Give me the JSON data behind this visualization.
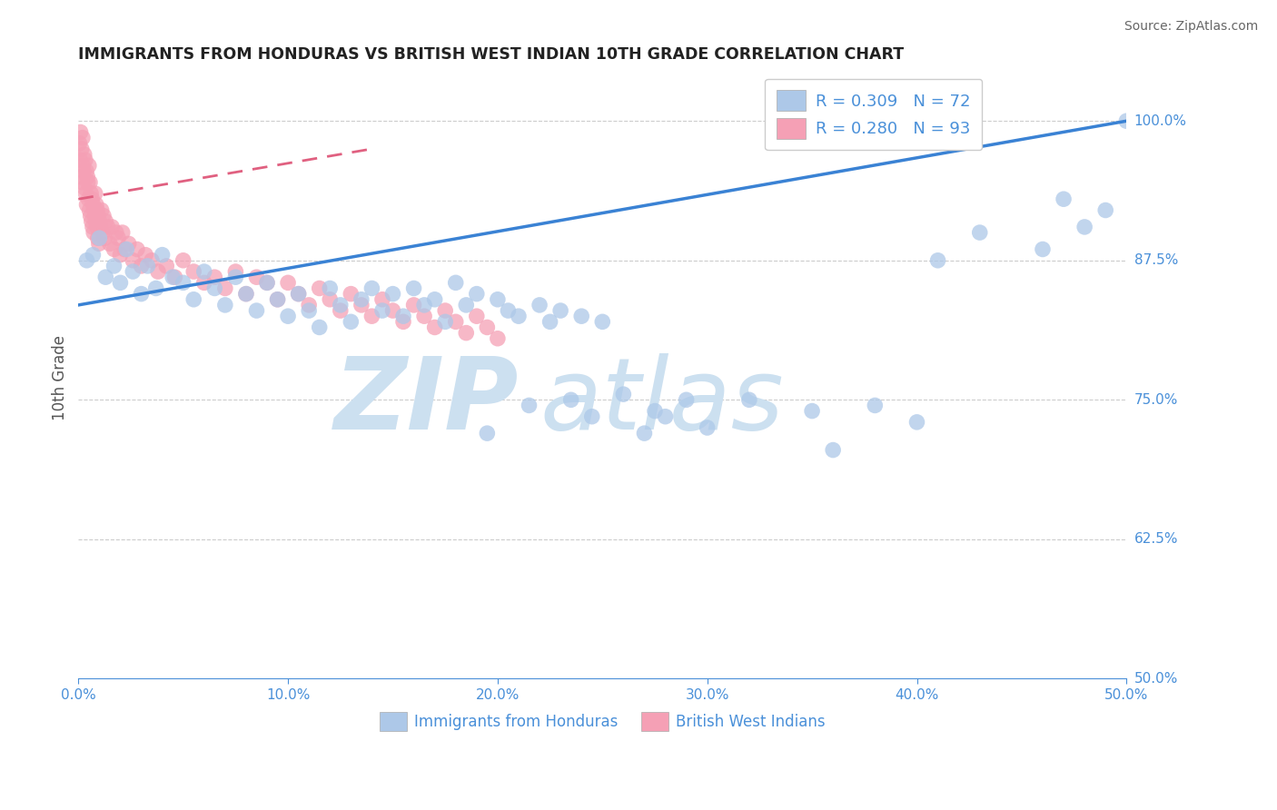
{
  "title": "IMMIGRANTS FROM HONDURAS VS BRITISH WEST INDIAN 10TH GRADE CORRELATION CHART",
  "source": "Source: ZipAtlas.com",
  "ylabel": "10th Grade",
  "xlim": [
    0.0,
    50.0
  ],
  "ylim": [
    50.0,
    104.0
  ],
  "ytick_vals": [
    62.5,
    75.0,
    87.5,
    100.0
  ],
  "ytick_right_labels": {
    "50.0": "50.0%",
    "62.5": "62.5%",
    "75.0": "75.0%",
    "87.5": "87.5%",
    "100.0": "100.0%"
  },
  "xtick_vals": [
    0,
    10,
    20,
    30,
    40,
    50
  ],
  "xtick_labels": [
    "0.0%",
    "10.0%",
    "20.0%",
    "30.0%",
    "40.0%",
    "50.0%"
  ],
  "legend_r_blue": "R = 0.309",
  "legend_n_blue": "N = 72",
  "legend_r_pink": "R = 0.280",
  "legend_n_pink": "N = 93",
  "blue_scatter_color": "#adc8e8",
  "pink_scatter_color": "#f5a0b5",
  "blue_line_color": "#3a82d4",
  "pink_line_color": "#e06080",
  "blue_line_x0": 0,
  "blue_line_y0": 83.5,
  "blue_line_x1": 50,
  "blue_line_y1": 100.0,
  "pink_line_x0": 0,
  "pink_line_y0": 93.0,
  "pink_line_x1": 14,
  "pink_line_y1": 97.5,
  "title_color": "#222222",
  "axis_color": "#4a90d9",
  "grid_color": "#cccccc",
  "watermark_zip_color": "#cce0f0",
  "watermark_atlas_color": "#cce0f0",
  "blue_dots": [
    [
      0.4,
      87.5
    ],
    [
      0.7,
      88.0
    ],
    [
      1.0,
      89.5
    ],
    [
      1.3,
      86.0
    ],
    [
      1.7,
      87.0
    ],
    [
      2.0,
      85.5
    ],
    [
      2.3,
      88.5
    ],
    [
      2.6,
      86.5
    ],
    [
      3.0,
      84.5
    ],
    [
      3.3,
      87.0
    ],
    [
      3.7,
      85.0
    ],
    [
      4.0,
      88.0
    ],
    [
      4.5,
      86.0
    ],
    [
      5.0,
      85.5
    ],
    [
      5.5,
      84.0
    ],
    [
      6.0,
      86.5
    ],
    [
      6.5,
      85.0
    ],
    [
      7.0,
      83.5
    ],
    [
      7.5,
      86.0
    ],
    [
      8.0,
      84.5
    ],
    [
      8.5,
      83.0
    ],
    [
      9.0,
      85.5
    ],
    [
      9.5,
      84.0
    ],
    [
      10.0,
      82.5
    ],
    [
      10.5,
      84.5
    ],
    [
      11.0,
      83.0
    ],
    [
      11.5,
      81.5
    ],
    [
      12.0,
      85.0
    ],
    [
      12.5,
      83.5
    ],
    [
      13.0,
      82.0
    ],
    [
      13.5,
      84.0
    ],
    [
      14.0,
      85.0
    ],
    [
      14.5,
      83.0
    ],
    [
      15.0,
      84.5
    ],
    [
      15.5,
      82.5
    ],
    [
      16.0,
      85.0
    ],
    [
      16.5,
      83.5
    ],
    [
      17.0,
      84.0
    ],
    [
      17.5,
      82.0
    ],
    [
      18.0,
      85.5
    ],
    [
      18.5,
      83.5
    ],
    [
      19.0,
      84.5
    ],
    [
      19.5,
      72.0
    ],
    [
      20.0,
      84.0
    ],
    [
      20.5,
      83.0
    ],
    [
      21.0,
      82.5
    ],
    [
      21.5,
      74.5
    ],
    [
      22.0,
      83.5
    ],
    [
      22.5,
      82.0
    ],
    [
      23.0,
      83.0
    ],
    [
      23.5,
      75.0
    ],
    [
      24.0,
      82.5
    ],
    [
      24.5,
      73.5
    ],
    [
      25.0,
      82.0
    ],
    [
      26.0,
      75.5
    ],
    [
      27.0,
      72.0
    ],
    [
      27.5,
      74.0
    ],
    [
      28.0,
      73.5
    ],
    [
      29.0,
      75.0
    ],
    [
      30.0,
      72.5
    ],
    [
      32.0,
      75.0
    ],
    [
      35.0,
      74.0
    ],
    [
      36.0,
      70.5
    ],
    [
      38.0,
      74.5
    ],
    [
      40.0,
      73.0
    ],
    [
      41.0,
      87.5
    ],
    [
      43.0,
      90.0
    ],
    [
      46.0,
      88.5
    ],
    [
      47.0,
      93.0
    ],
    [
      48.0,
      90.5
    ],
    [
      49.0,
      92.0
    ],
    [
      50.0,
      100.0
    ]
  ],
  "pink_dots": [
    [
      0.05,
      98.0
    ],
    [
      0.08,
      96.5
    ],
    [
      0.1,
      99.0
    ],
    [
      0.12,
      95.0
    ],
    [
      0.15,
      97.5
    ],
    [
      0.18,
      94.5
    ],
    [
      0.2,
      98.5
    ],
    [
      0.22,
      96.0
    ],
    [
      0.25,
      95.5
    ],
    [
      0.28,
      97.0
    ],
    [
      0.3,
      94.0
    ],
    [
      0.33,
      96.5
    ],
    [
      0.35,
      93.5
    ],
    [
      0.38,
      95.5
    ],
    [
      0.4,
      92.5
    ],
    [
      0.43,
      95.0
    ],
    [
      0.45,
      94.5
    ],
    [
      0.48,
      93.0
    ],
    [
      0.5,
      96.0
    ],
    [
      0.53,
      92.0
    ],
    [
      0.55,
      94.5
    ],
    [
      0.58,
      91.5
    ],
    [
      0.6,
      93.5
    ],
    [
      0.63,
      91.0
    ],
    [
      0.65,
      93.0
    ],
    [
      0.68,
      90.5
    ],
    [
      0.7,
      92.5
    ],
    [
      0.73,
      90.0
    ],
    [
      0.75,
      92.0
    ],
    [
      0.78,
      91.5
    ],
    [
      0.8,
      93.5
    ],
    [
      0.83,
      91.0
    ],
    [
      0.85,
      92.5
    ],
    [
      0.88,
      90.5
    ],
    [
      0.9,
      92.0
    ],
    [
      0.93,
      89.5
    ],
    [
      0.95,
      91.5
    ],
    [
      0.98,
      89.0
    ],
    [
      1.0,
      91.0
    ],
    [
      1.05,
      90.5
    ],
    [
      1.1,
      92.0
    ],
    [
      1.15,
      90.0
    ],
    [
      1.2,
      91.5
    ],
    [
      1.25,
      89.5
    ],
    [
      1.3,
      91.0
    ],
    [
      1.4,
      90.5
    ],
    [
      1.5,
      89.0
    ],
    [
      1.6,
      90.5
    ],
    [
      1.7,
      88.5
    ],
    [
      1.8,
      90.0
    ],
    [
      1.9,
      89.5
    ],
    [
      2.0,
      88.0
    ],
    [
      2.1,
      90.0
    ],
    [
      2.2,
      88.5
    ],
    [
      2.4,
      89.0
    ],
    [
      2.6,
      87.5
    ],
    [
      2.8,
      88.5
    ],
    [
      3.0,
      87.0
    ],
    [
      3.2,
      88.0
    ],
    [
      3.5,
      87.5
    ],
    [
      3.8,
      86.5
    ],
    [
      4.2,
      87.0
    ],
    [
      4.6,
      86.0
    ],
    [
      5.0,
      87.5
    ],
    [
      5.5,
      86.5
    ],
    [
      6.0,
      85.5
    ],
    [
      6.5,
      86.0
    ],
    [
      7.0,
      85.0
    ],
    [
      7.5,
      86.5
    ],
    [
      8.0,
      84.5
    ],
    [
      8.5,
      86.0
    ],
    [
      9.0,
      85.5
    ],
    [
      9.5,
      84.0
    ],
    [
      10.0,
      85.5
    ],
    [
      10.5,
      84.5
    ],
    [
      11.0,
      83.5
    ],
    [
      11.5,
      85.0
    ],
    [
      12.0,
      84.0
    ],
    [
      12.5,
      83.0
    ],
    [
      13.0,
      84.5
    ],
    [
      13.5,
      83.5
    ],
    [
      14.0,
      82.5
    ],
    [
      14.5,
      84.0
    ],
    [
      15.0,
      83.0
    ],
    [
      15.5,
      82.0
    ],
    [
      16.0,
      83.5
    ],
    [
      16.5,
      82.5
    ],
    [
      17.0,
      81.5
    ],
    [
      17.5,
      83.0
    ],
    [
      18.0,
      82.0
    ],
    [
      18.5,
      81.0
    ],
    [
      19.0,
      82.5
    ],
    [
      19.5,
      81.5
    ],
    [
      20.0,
      80.5
    ]
  ]
}
